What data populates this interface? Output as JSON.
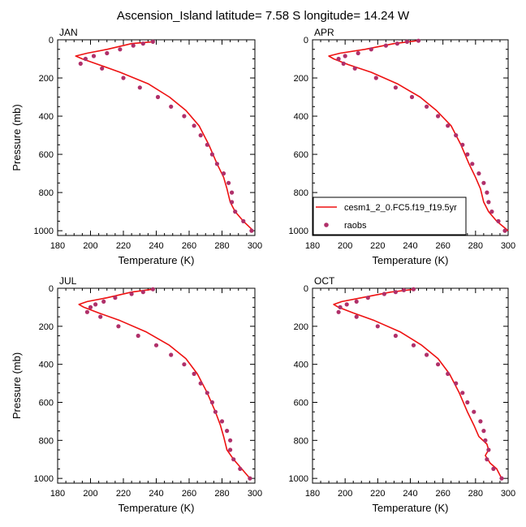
{
  "figure": {
    "title": "Ascension_Island  latitude= 7.58 S longitude= 14.24 W"
  },
  "colors": {
    "model_line": "#ee1111",
    "obs_marker": "#b0306a",
    "axes": "#000000"
  },
  "legend": {
    "entries": [
      {
        "label": "cesm1_2_0.FC5.f19_f19.5yr",
        "kind": "line"
      },
      {
        "label": "raobs",
        "kind": "marker"
      }
    ],
    "placement": "APR panel, lower-left"
  },
  "chart_data": [
    {
      "type": "line",
      "panel_label": "JAN",
      "xlabel": "Temperature (K)",
      "ylabel": "Pressure (mb)",
      "xlim": [
        180,
        300
      ],
      "ylim": [
        1025,
        0
      ],
      "y_reversed": true,
      "xticks": [
        "180",
        "200",
        "220",
        "240",
        "260",
        "280",
        "300"
      ],
      "yticks": [
        "0",
        "200",
        "400",
        "600",
        "800",
        "1000"
      ],
      "series": [
        {
          "name": "cesm1_2_0.FC5.f19_f19.5yr",
          "kind": "line",
          "points": [
            [
              238,
              10
            ],
            [
              225,
              20
            ],
            [
              210,
              50
            ],
            [
              198,
              70
            ],
            [
              191,
              85
            ],
            [
              195,
              100
            ],
            [
              205,
              130
            ],
            [
              218,
              170
            ],
            [
              235,
              230
            ],
            [
              248,
              300
            ],
            [
              258,
              370
            ],
            [
              266,
              450
            ],
            [
              272,
              550
            ],
            [
              277,
              650
            ],
            [
              281,
              720
            ],
            [
              283,
              780
            ],
            [
              285,
              850
            ],
            [
              288,
              900
            ],
            [
              293,
              950
            ],
            [
              299,
              1000
            ]
          ]
        },
        {
          "name": "raobs",
          "kind": "marker",
          "points": [
            [
              238,
              10
            ],
            [
              232,
              20
            ],
            [
              226,
              30
            ],
            [
              218,
              50
            ],
            [
              210,
              70
            ],
            [
              202,
              85
            ],
            [
              197,
              100
            ],
            [
              194,
              125
            ],
            [
              207,
              150
            ],
            [
              220,
              200
            ],
            [
              230,
              250
            ],
            [
              241,
              300
            ],
            [
              249,
              350
            ],
            [
              257,
              400
            ],
            [
              263,
              450
            ],
            [
              267,
              500
            ],
            [
              271,
              550
            ],
            [
              274,
              600
            ],
            [
              277,
              650
            ],
            [
              281,
              700
            ],
            [
              284,
              750
            ],
            [
              286,
              800
            ],
            [
              286,
              850
            ],
            [
              288,
              900
            ],
            [
              293,
              950
            ],
            [
              298,
              1000
            ]
          ]
        }
      ]
    },
    {
      "type": "line",
      "panel_label": "APR",
      "xlabel": "Temperature (K)",
      "ylabel": "",
      "xlim": [
        180,
        300
      ],
      "ylim": [
        1025,
        0
      ],
      "y_reversed": true,
      "xticks": [
        "180",
        "200",
        "220",
        "240",
        "260",
        "280",
        "300"
      ],
      "yticks": [
        "0",
        "200",
        "400",
        "600",
        "800",
        "1000"
      ],
      "series": [
        {
          "name": "cesm1_2_0.FC5.f19_f19.5yr",
          "kind": "line",
          "points": [
            [
              244,
              5
            ],
            [
              230,
              20
            ],
            [
              212,
              50
            ],
            [
              197,
              70
            ],
            [
              190,
              85
            ],
            [
              193,
              100
            ],
            [
              202,
              130
            ],
            [
              216,
              170
            ],
            [
              232,
              230
            ],
            [
              246,
              300
            ],
            [
              256,
              370
            ],
            [
              265,
              450
            ],
            [
              271,
              550
            ],
            [
              276,
              650
            ],
            [
              280,
              720
            ],
            [
              283,
              780
            ],
            [
              285,
              850
            ],
            [
              288,
              900
            ],
            [
              293,
              950
            ],
            [
              300,
              1000
            ]
          ]
        },
        {
          "name": "raobs",
          "kind": "marker",
          "points": [
            [
              245,
              5
            ],
            [
              238,
              10
            ],
            [
              232,
              20
            ],
            [
              225,
              30
            ],
            [
              216,
              50
            ],
            [
              208,
              70
            ],
            [
              200,
              85
            ],
            [
              196,
              100
            ],
            [
              199,
              125
            ],
            [
              206,
              150
            ],
            [
              219,
              200
            ],
            [
              231,
              250
            ],
            [
              241,
              300
            ],
            [
              250,
              350
            ],
            [
              257,
              400
            ],
            [
              263,
              450
            ],
            [
              268,
              500
            ],
            [
              272,
              550
            ],
            [
              275,
              600
            ],
            [
              278,
              650
            ],
            [
              282,
              700
            ],
            [
              285,
              750
            ],
            [
              287,
              800
            ],
            [
              288,
              850
            ],
            [
              290,
              900
            ],
            [
              294,
              950
            ],
            [
              298,
              1000
            ]
          ]
        }
      ]
    },
    {
      "type": "line",
      "panel_label": "JUL",
      "xlabel": "Temperature (K)",
      "ylabel": "Pressure (mb)",
      "xlim": [
        180,
        300
      ],
      "ylim": [
        1025,
        0
      ],
      "y_reversed": true,
      "xticks": [
        "180",
        "200",
        "220",
        "240",
        "260",
        "280",
        "300"
      ],
      "yticks": [
        "0",
        "200",
        "400",
        "600",
        "800",
        "1000"
      ],
      "series": [
        {
          "name": "cesm1_2_0.FC5.f19_f19.5yr",
          "kind": "line",
          "points": [
            [
              238,
              5
            ],
            [
              225,
              20
            ],
            [
              210,
              50
            ],
            [
              198,
              70
            ],
            [
              193,
              85
            ],
            [
              196,
              100
            ],
            [
              205,
              130
            ],
            [
              218,
              170
            ],
            [
              234,
              230
            ],
            [
              248,
              300
            ],
            [
              258,
              370
            ],
            [
              265,
              450
            ],
            [
              271,
              550
            ],
            [
              276,
              650
            ],
            [
              279,
              720
            ],
            [
              281,
              780
            ],
            [
              283,
              850
            ],
            [
              287,
              900
            ],
            [
              292,
              950
            ],
            [
              297,
              1000
            ]
          ]
        },
        {
          "name": "raobs",
          "kind": "marker",
          "points": [
            [
              238,
              5
            ],
            [
              232,
              20
            ],
            [
              225,
              30
            ],
            [
              215,
              50
            ],
            [
              208,
              70
            ],
            [
              203,
              85
            ],
            [
              200,
              100
            ],
            [
              198,
              125
            ],
            [
              206,
              150
            ],
            [
              217,
              200
            ],
            [
              229,
              250
            ],
            [
              240,
              300
            ],
            [
              249,
              350
            ],
            [
              257,
              400
            ],
            [
              263,
              450
            ],
            [
              267,
              500
            ],
            [
              271,
              550
            ],
            [
              274,
              600
            ],
            [
              276,
              650
            ],
            [
              280,
              700
            ],
            [
              283,
              750
            ],
            [
              285,
              800
            ],
            [
              285,
              850
            ],
            [
              287,
              900
            ],
            [
              291,
              950
            ],
            [
              297,
              1000
            ]
          ]
        }
      ]
    },
    {
      "type": "line",
      "panel_label": "OCT",
      "xlabel": "Temperature (K)",
      "ylabel": "",
      "xlim": [
        180,
        300
      ],
      "ylim": [
        1025,
        0
      ],
      "y_reversed": true,
      "xticks": [
        "180",
        "200",
        "220",
        "240",
        "260",
        "280",
        "300"
      ],
      "yticks": [
        "0",
        "200",
        "400",
        "600",
        "800",
        "1000"
      ],
      "series": [
        {
          "name": "cesm1_2_0.FC5.f19_f19.5yr",
          "kind": "line",
          "points": [
            [
              243,
              5
            ],
            [
              228,
              20
            ],
            [
              210,
              50
            ],
            [
              198,
              70
            ],
            [
              193,
              85
            ],
            [
              196,
              100
            ],
            [
              205,
              130
            ],
            [
              218,
              170
            ],
            [
              234,
              230
            ],
            [
              247,
              300
            ],
            [
              257,
              370
            ],
            [
              264,
              450
            ],
            [
              270,
              550
            ],
            [
              275,
              650
            ],
            [
              279,
              720
            ],
            [
              282,
              780
            ],
            [
              287,
              820
            ],
            [
              288,
              850
            ],
            [
              286,
              880
            ],
            [
              289,
              920
            ],
            [
              293,
              950
            ],
            [
              296,
              1000
            ]
          ]
        },
        {
          "name": "raobs",
          "kind": "marker",
          "points": [
            [
              242,
              5
            ],
            [
              236,
              10
            ],
            [
              231,
              20
            ],
            [
              224,
              30
            ],
            [
              214,
              50
            ],
            [
              207,
              70
            ],
            [
              201,
              85
            ],
            [
              197,
              100
            ],
            [
              196,
              125
            ],
            [
              207,
              150
            ],
            [
              220,
              200
            ],
            [
              231,
              250
            ],
            [
              242,
              300
            ],
            [
              250,
              350
            ],
            [
              257,
              400
            ],
            [
              263,
              450
            ],
            [
              268,
              500
            ],
            [
              272,
              550
            ],
            [
              275,
              600
            ],
            [
              279,
              650
            ],
            [
              283,
              700
            ],
            [
              285,
              750
            ],
            [
              286,
              800
            ],
            [
              288,
              850
            ],
            [
              287,
              900
            ],
            [
              291,
              950
            ],
            [
              296,
              1000
            ]
          ]
        }
      ]
    }
  ]
}
